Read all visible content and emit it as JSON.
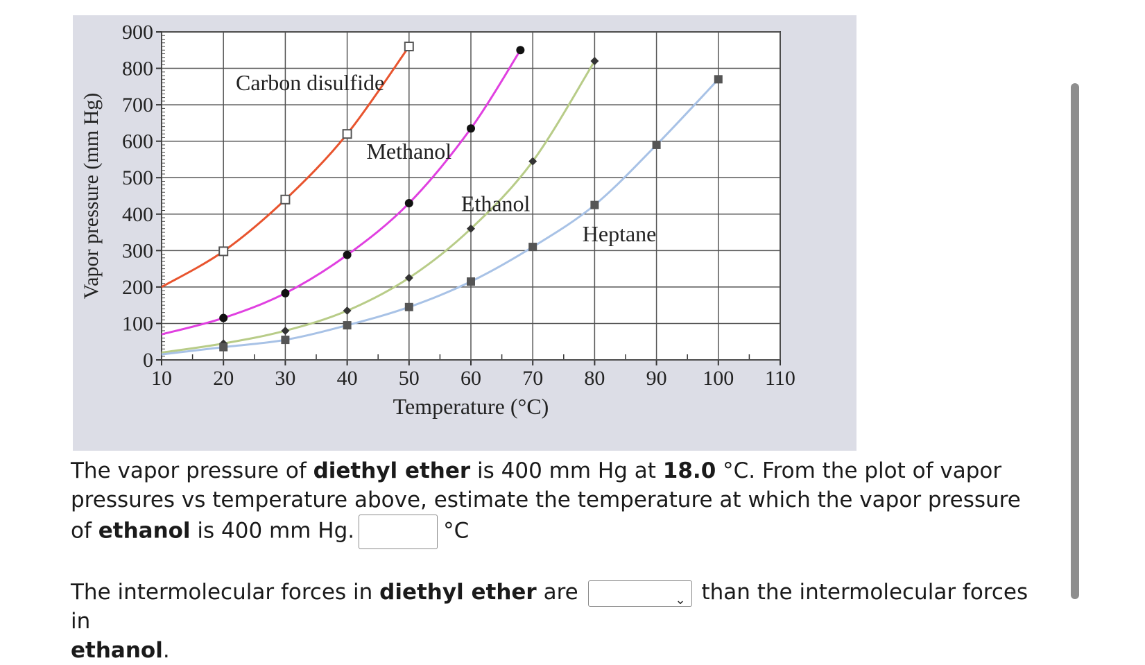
{
  "chart_data": {
    "type": "line",
    "xlabel": "Temperature (°C)",
    "ylabel": "Vapor pressure (mm Hg)",
    "xlim": [
      10,
      110
    ],
    "ylim": [
      0,
      900
    ],
    "x_ticks": [
      10,
      20,
      30,
      40,
      50,
      60,
      70,
      80,
      90,
      100,
      110
    ],
    "y_ticks": [
      0,
      100,
      200,
      300,
      400,
      500,
      600,
      700,
      800,
      900
    ],
    "grid": true,
    "series": [
      {
        "name": "Carbon disulfide",
        "color": "#e8542e",
        "marker": "open-square",
        "curve": [
          [
            10,
            200
          ],
          [
            20,
            298
          ],
          [
            30,
            440
          ],
          [
            40,
            620
          ],
          [
            50,
            860
          ]
        ],
        "points": [
          [
            20,
            298
          ],
          [
            30,
            440
          ],
          [
            40,
            620
          ],
          [
            50,
            860
          ]
        ]
      },
      {
        "name": "Methanol",
        "color": "#e040e0",
        "marker": "filled-circle",
        "curve": [
          [
            10,
            70
          ],
          [
            20,
            115
          ],
          [
            30,
            183
          ],
          [
            40,
            288
          ],
          [
            50,
            430
          ],
          [
            60,
            635
          ],
          [
            68,
            850
          ]
        ],
        "points": [
          [
            20,
            115
          ],
          [
            30,
            183
          ],
          [
            40,
            288
          ],
          [
            50,
            430
          ],
          [
            60,
            635
          ],
          [
            68,
            850
          ]
        ]
      },
      {
        "name": "Ethanol",
        "color": "#b8cc88",
        "marker": "diamond",
        "curve": [
          [
            10,
            20
          ],
          [
            20,
            45
          ],
          [
            30,
            80
          ],
          [
            40,
            135
          ],
          [
            50,
            225
          ],
          [
            60,
            360
          ],
          [
            70,
            545
          ],
          [
            80,
            820
          ]
        ],
        "points": [
          [
            20,
            45
          ],
          [
            30,
            80
          ],
          [
            40,
            135
          ],
          [
            50,
            225
          ],
          [
            60,
            360
          ],
          [
            70,
            545
          ],
          [
            80,
            820
          ]
        ]
      },
      {
        "name": "Heptane",
        "color": "#a8c2e6",
        "marker": "filled-square",
        "curve": [
          [
            10,
            15
          ],
          [
            20,
            35
          ],
          [
            30,
            55
          ],
          [
            40,
            95
          ],
          [
            50,
            145
          ],
          [
            60,
            215
          ],
          [
            70,
            310
          ],
          [
            80,
            425
          ],
          [
            90,
            590
          ],
          [
            100,
            770
          ]
        ],
        "points": [
          [
            20,
            35
          ],
          [
            30,
            55
          ],
          [
            40,
            95
          ],
          [
            50,
            145
          ],
          [
            60,
            215
          ],
          [
            70,
            310
          ],
          [
            80,
            425
          ],
          [
            90,
            590
          ],
          [
            100,
            770
          ]
        ]
      }
    ],
    "annotations": [
      {
        "text": "Carbon disulfide",
        "x": 34,
        "y": 740
      },
      {
        "text": "Methanol",
        "x": 50,
        "y": 552
      },
      {
        "text": "Ethanol",
        "x": 64,
        "y": 408
      },
      {
        "text": "Heptane",
        "x": 84,
        "y": 325
      }
    ]
  },
  "question1": {
    "text_a": "The vapor pressure of ",
    "bold_a": "diethyl ether",
    "text_b": " is 400 mm Hg at ",
    "bold_b": "18.0",
    "text_c": " °C. From the plot of vapor pressures vs temperature above, estimate the temperature at which the vapor pressure of ",
    "bold_c": "ethanol",
    "text_d": " is 400 mm Hg.",
    "answer_value": "",
    "unit": "°C"
  },
  "question2": {
    "text_a": "The intermolecular forces in ",
    "bold_a": "diethyl ether",
    "text_b": " are",
    "select_value": "",
    "text_c": " than the intermolecular forces in ",
    "bold_b": "ethanol",
    "text_d": "."
  }
}
